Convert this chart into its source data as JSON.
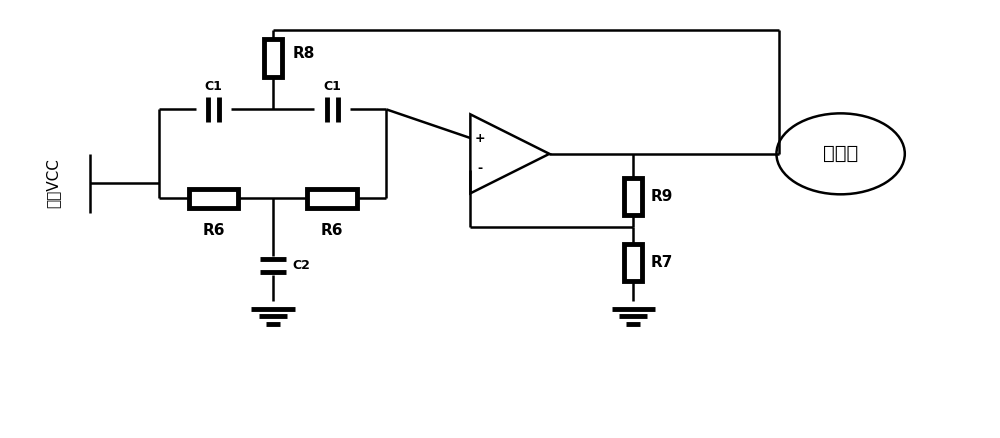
{
  "bg_color": "#ffffff",
  "line_color": "#000000",
  "line_width": 1.8,
  "thick_lw": 3.5,
  "fig_width": 10.0,
  "fig_height": 4.38,
  "label_vcc": "电源VCC",
  "label_jingtiguan": "晶体管",
  "label_R6_left": "R6",
  "label_R6_right": "R6",
  "label_R7": "R7",
  "label_R8": "R8",
  "label_R9": "R9",
  "label_C1_left": "C1",
  "label_C1_right": "C1",
  "label_C2": "C2",
  "plus_sign": "+",
  "minus_sign": "-",
  "font_size_label": 11,
  "font_size_small": 9,
  "font_size_jt": 14
}
